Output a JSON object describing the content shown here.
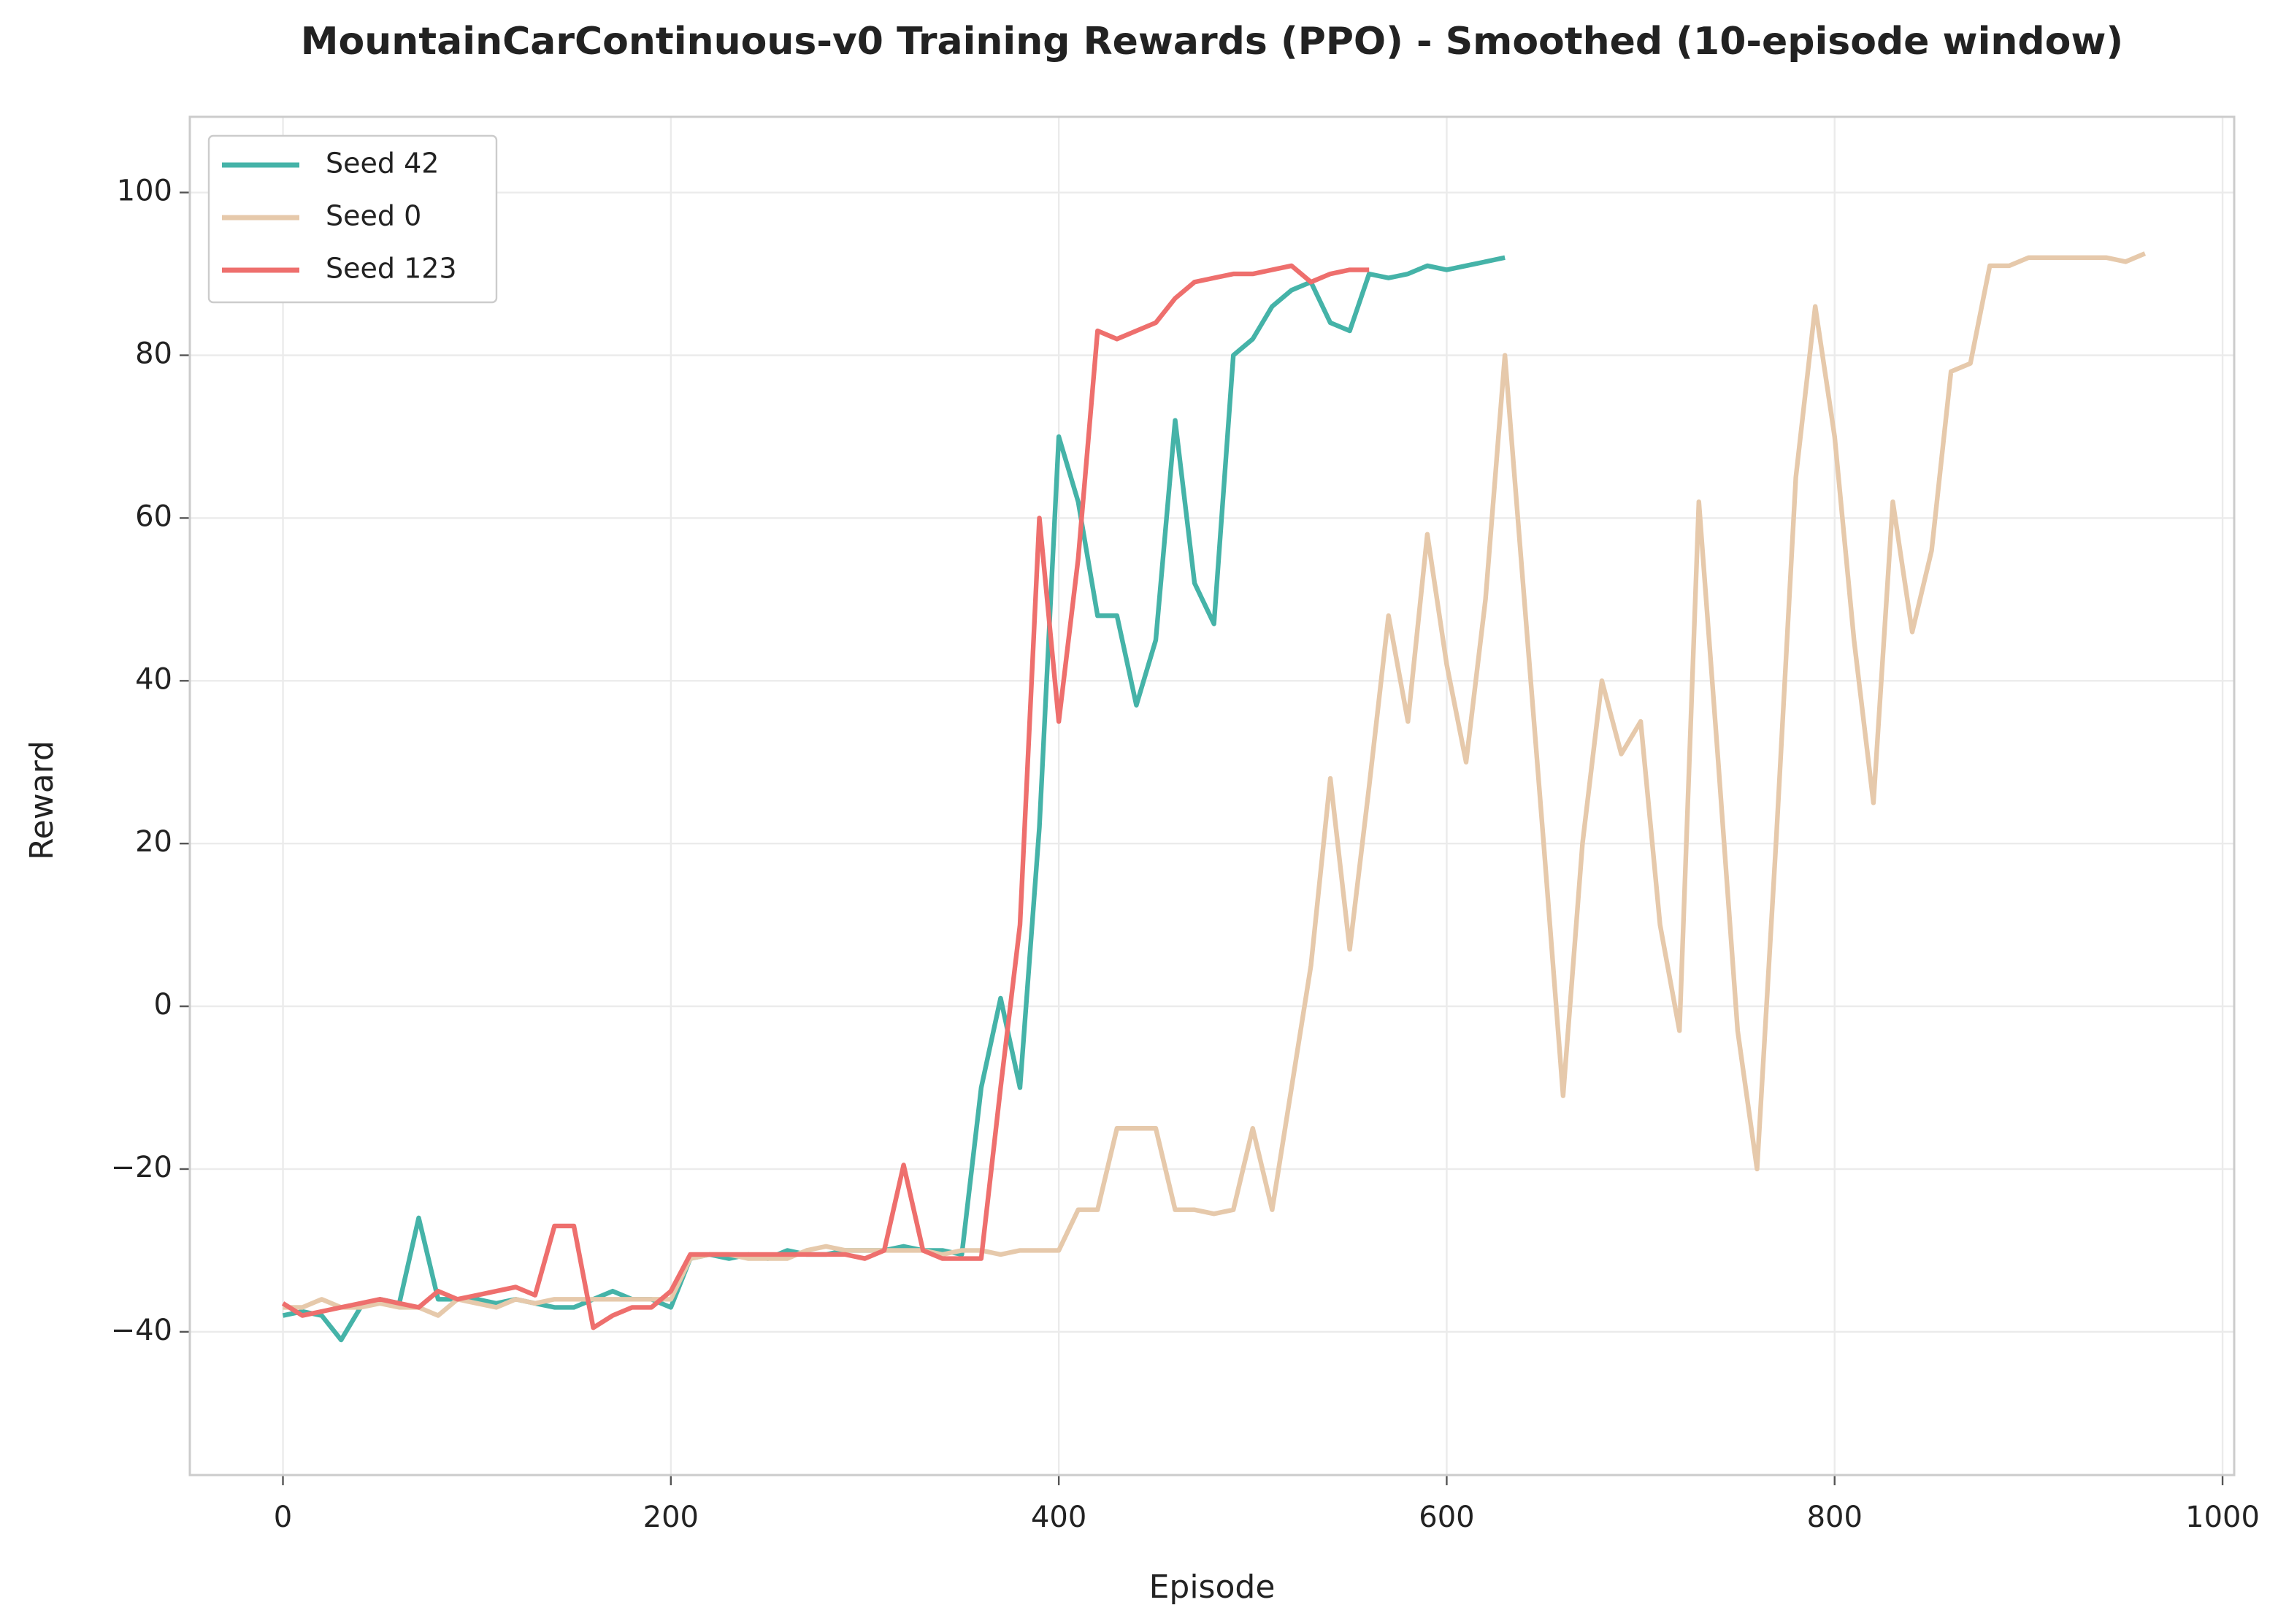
{
  "chart_data": {
    "type": "line",
    "title": "MountainCarContinuous-v0 Training Rewards (PPO) - Smoothed (10-episode window)",
    "x_label": "Episode",
    "y_label": "Reward",
    "x": [
      0,
      10,
      20,
      30,
      40,
      50,
      60,
      70,
      80,
      90,
      100,
      110,
      120,
      130,
      140,
      150,
      160,
      170,
      180,
      190,
      200,
      210,
      220,
      230,
      240,
      250,
      260,
      270,
      280,
      290,
      300,
      310,
      320,
      330,
      340,
      350,
      360,
      370,
      380,
      390,
      400,
      410,
      420,
      430,
      440,
      450,
      460,
      470,
      480,
      490,
      500,
      510,
      520,
      530,
      540,
      550,
      560,
      570,
      580,
      590,
      600,
      610,
      620,
      630,
      640,
      650,
      660,
      670,
      680,
      690,
      700,
      710,
      720,
      730,
      740,
      750,
      760,
      770,
      780,
      790,
      800,
      810,
      820,
      830,
      840,
      850,
      860,
      870,
      880,
      890,
      900,
      910,
      920,
      930,
      940,
      950,
      960
    ],
    "series": [
      {
        "name": "Seed 42",
        "color": "#45b3a8",
        "values": [
          -38,
          -37.5,
          -38,
          -41,
          -37,
          -36,
          -36.5,
          -26,
          -36,
          -36,
          -36,
          -36.5,
          -36,
          -36.5,
          -37,
          -37,
          -36,
          -35,
          -36,
          -36,
          -37,
          -31,
          -30.5,
          -31,
          -30.5,
          -31,
          -30,
          -30.5,
          -30.5,
          -30,
          -30,
          -30,
          -29.5,
          -30,
          -30,
          -30.5,
          -10,
          1,
          -10,
          22,
          70,
          62,
          48,
          48,
          37,
          45,
          72,
          52,
          47,
          80,
          82,
          86,
          88,
          89,
          84,
          83,
          90,
          89.5,
          90,
          91,
          90.5,
          91,
          91.5,
          92,
          null,
          null,
          null,
          null,
          null,
          null,
          null,
          null,
          null,
          null,
          null,
          null,
          null,
          null,
          null,
          null,
          null,
          null,
          null,
          null,
          null,
          null,
          null,
          null,
          null,
          null,
          null,
          null,
          null,
          null,
          null,
          null,
          null
        ]
      },
      {
        "name": "Seed 0",
        "color": "#e6c9ab",
        "values": [
          -37,
          -37,
          -36,
          -37,
          -37,
          -36.5,
          -37,
          -37,
          -38,
          -36,
          -36.5,
          -37,
          -36,
          -36.5,
          -36,
          -36,
          -36,
          -36,
          -36,
          -36,
          -36,
          -31,
          -30.5,
          -30.5,
          -31,
          -31,
          -31,
          -30,
          -29.5,
          -30,
          -30,
          -30,
          -30,
          -30,
          -30.5,
          -30,
          -30,
          -30.5,
          -30,
          -30,
          -30,
          -25,
          -25,
          -15,
          -15,
          -15,
          -25,
          -25,
          -25.5,
          -25,
          -15,
          -25,
          -10,
          5,
          28,
          7,
          27,
          48,
          35,
          58,
          42,
          30,
          50,
          80,
          50,
          20,
          -11,
          20,
          40,
          31,
          35,
          10,
          -3,
          62,
          30,
          -3,
          -20,
          21,
          65,
          86,
          70,
          45,
          25,
          62,
          46,
          56,
          78,
          79,
          91,
          91,
          92,
          92,
          92,
          92,
          92,
          91.5,
          92.5
        ]
      },
      {
        "name": "Seed 123",
        "color": "#ee6f6d",
        "values": [
          -36.5,
          -38,
          -37.5,
          -37,
          -36.5,
          -36,
          -36.5,
          -37,
          -35,
          -36,
          -35.5,
          -35,
          -34.5,
          -35.5,
          -27,
          -27,
          -39.5,
          -38,
          -37,
          -37,
          -35,
          -30.5,
          -30.5,
          -30.5,
          -30.5,
          -30.5,
          -30.5,
          -30.5,
          -30.5,
          -30.5,
          -31,
          -30,
          -19.5,
          -30,
          -31,
          -31,
          -31,
          -10,
          10,
          60,
          35,
          55,
          83,
          82,
          83,
          84,
          87,
          89,
          89.5,
          90,
          90,
          90.5,
          91,
          89,
          90,
          90.5,
          90.5,
          null,
          null,
          null,
          null,
          null,
          null,
          null,
          null,
          null,
          null,
          null,
          null,
          null,
          null,
          null,
          null,
          null,
          null,
          null,
          null,
          null,
          null,
          null,
          null,
          null,
          null,
          null,
          null,
          null,
          null,
          null,
          null,
          null,
          null,
          null,
          null,
          null,
          null,
          null,
          null
        ]
      }
    ],
    "xlim": [
      -48,
      1006
    ],
    "ylim": [
      -57.6,
      109.3
    ],
    "xticks": [
      0,
      200,
      400,
      600,
      800,
      1000
    ],
    "yticks": [
      {
        "value": -40,
        "label": "−40"
      },
      {
        "value": -20,
        "label": "−20"
      },
      0,
      20,
      40,
      60,
      80,
      100
    ],
    "grid": true,
    "legend": "upper left"
  }
}
